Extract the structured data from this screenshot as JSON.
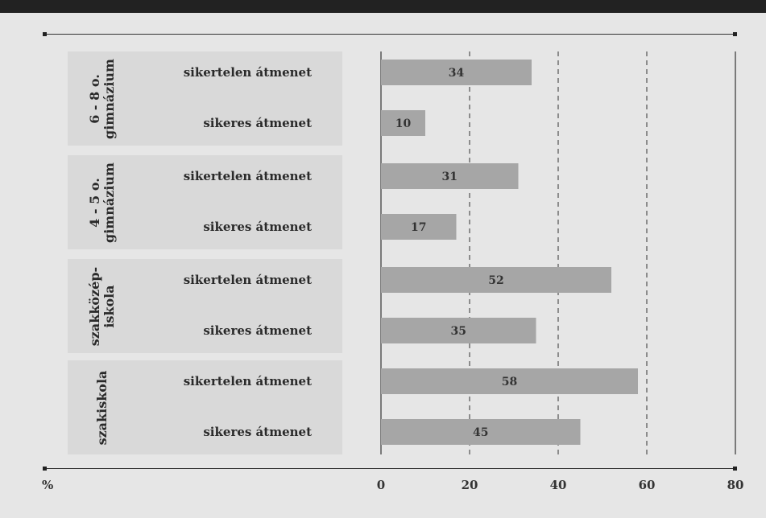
{
  "chart_data": {
    "type": "bar",
    "orientation": "horizontal",
    "unit": "%",
    "xlim": [
      0,
      80
    ],
    "xticks": [
      0,
      20,
      40,
      60,
      80
    ],
    "groups": [
      {
        "label": "6 - 8 o.\ngimnázium",
        "rows": [
          {
            "label": "sikertelen átmenet",
            "value": 34
          },
          {
            "label": "sikeres átmenet",
            "value": 10
          }
        ]
      },
      {
        "label": "4 - 5 o.\ngimnázium",
        "rows": [
          {
            "label": "sikertelen átmenet",
            "value": 31
          },
          {
            "label": "sikeres átmenet",
            "value": 17
          }
        ]
      },
      {
        "label": "szakközép-\niskola",
        "rows": [
          {
            "label": "sikertelen átmenet",
            "value": 52
          },
          {
            "label": "sikeres átmenet",
            "value": 35
          }
        ]
      },
      {
        "label": "szakiskola",
        "rows": [
          {
            "label": "sikertelen átmenet",
            "value": 58
          },
          {
            "label": "sikeres átmenet",
            "value": 45
          }
        ]
      }
    ],
    "grid": "dashed vertical at 20, 40, 60",
    "colors": {
      "bar": "#a6a6a6",
      "group_box": "#d9d9d9",
      "background": "#e6e6e6"
    }
  }
}
